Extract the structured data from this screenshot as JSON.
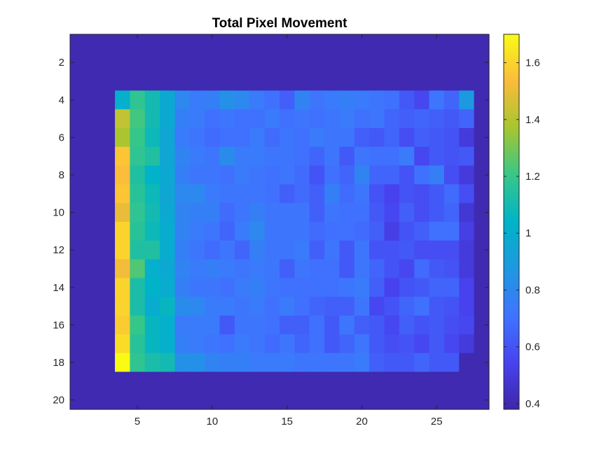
{
  "chart_data": {
    "type": "heatmap",
    "title": "Total Pixel Movement",
    "xlabel": "",
    "ylabel": "",
    "xlim": [
      0.5,
      28.5
    ],
    "ylim": [
      0.5,
      20.5
    ],
    "x_ticks": [
      5,
      10,
      15,
      20,
      25
    ],
    "y_ticks": [
      2,
      4,
      6,
      8,
      10,
      12,
      14,
      16,
      18,
      20
    ],
    "colorbar": {
      "colormap": "parula",
      "range": [
        0.38,
        1.7
      ],
      "ticks": [
        "0.4",
        "0.6",
        "0.8",
        "1",
        "1.2",
        "1.4",
        "1.6"
      ]
    },
    "background_value": 0.4,
    "matrix": [
      [
        0.4,
        0.4,
        0.4,
        0.4,
        0.4,
        0.4,
        0.4,
        0.4,
        0.4,
        0.4,
        0.4,
        0.4,
        0.4,
        0.4,
        0.4,
        0.4,
        0.4,
        0.4,
        0.4,
        0.4,
        0.4,
        0.4,
        0.4,
        0.4,
        0.4,
        0.4,
        0.4,
        0.4
      ],
      [
        0.4,
        0.4,
        0.4,
        0.4,
        0.4,
        0.4,
        0.4,
        0.4,
        0.4,
        0.4,
        0.4,
        0.4,
        0.4,
        0.4,
        0.4,
        0.4,
        0.4,
        0.4,
        0.4,
        0.4,
        0.4,
        0.4,
        0.4,
        0.4,
        0.4,
        0.4,
        0.4,
        0.4
      ],
      [
        0.4,
        0.4,
        0.4,
        0.4,
        0.4,
        0.4,
        0.4,
        0.4,
        0.4,
        0.4,
        0.4,
        0.4,
        0.4,
        0.4,
        0.4,
        0.4,
        0.4,
        0.4,
        0.4,
        0.4,
        0.4,
        0.4,
        0.4,
        0.4,
        0.4,
        0.4,
        0.4,
        0.4
      ],
      [
        0.4,
        0.4,
        0.4,
        1.02,
        1.18,
        1.1,
        0.98,
        0.8,
        0.74,
        0.76,
        0.84,
        0.8,
        0.74,
        0.7,
        0.64,
        0.78,
        0.72,
        0.74,
        0.76,
        0.74,
        0.72,
        0.7,
        0.62,
        0.56,
        0.72,
        0.66,
        0.88,
        0.4
      ],
      [
        0.4,
        0.4,
        0.4,
        1.42,
        1.22,
        1.1,
        0.98,
        0.76,
        0.74,
        0.7,
        0.72,
        0.7,
        0.7,
        0.74,
        0.7,
        0.72,
        0.7,
        0.72,
        0.74,
        0.7,
        0.72,
        0.66,
        0.64,
        0.66,
        0.64,
        0.62,
        0.66,
        0.4
      ],
      [
        0.4,
        0.4,
        0.4,
        1.38,
        1.2,
        1.08,
        0.96,
        0.74,
        0.72,
        0.68,
        0.7,
        0.7,
        0.74,
        0.68,
        0.72,
        0.7,
        0.74,
        0.72,
        0.72,
        0.64,
        0.62,
        0.66,
        0.58,
        0.64,
        0.62,
        0.6,
        0.5,
        0.4
      ],
      [
        0.4,
        0.4,
        0.4,
        1.56,
        1.18,
        1.14,
        0.96,
        0.78,
        0.74,
        0.72,
        0.82,
        0.74,
        0.74,
        0.72,
        0.72,
        0.7,
        0.66,
        0.72,
        0.62,
        0.72,
        0.7,
        0.7,
        0.74,
        0.56,
        0.62,
        0.6,
        0.62,
        0.4
      ],
      [
        0.4,
        0.4,
        0.4,
        1.54,
        1.14,
        1.04,
        0.98,
        0.76,
        0.72,
        0.72,
        0.7,
        0.74,
        0.72,
        0.7,
        0.72,
        0.68,
        0.6,
        0.7,
        0.66,
        0.78,
        0.66,
        0.66,
        0.6,
        0.7,
        0.76,
        0.58,
        0.5,
        0.4
      ],
      [
        0.4,
        0.4,
        0.4,
        1.56,
        1.16,
        1.08,
        0.96,
        0.8,
        0.8,
        0.74,
        0.72,
        0.72,
        0.72,
        0.7,
        0.64,
        0.68,
        0.64,
        0.76,
        0.68,
        0.72,
        0.6,
        0.54,
        0.6,
        0.58,
        0.62,
        0.68,
        0.58,
        0.4
      ],
      [
        0.4,
        0.4,
        0.4,
        1.5,
        1.18,
        1.1,
        0.98,
        0.78,
        0.76,
        0.76,
        0.68,
        0.72,
        0.76,
        0.72,
        0.72,
        0.72,
        0.64,
        0.72,
        0.7,
        0.7,
        0.62,
        0.56,
        0.64,
        0.58,
        0.62,
        0.66,
        0.48,
        0.4
      ],
      [
        0.4,
        0.4,
        0.4,
        1.6,
        1.16,
        1.08,
        1.0,
        0.78,
        0.74,
        0.72,
        0.66,
        0.74,
        0.8,
        0.72,
        0.72,
        0.72,
        0.68,
        0.7,
        0.7,
        0.68,
        0.64,
        0.52,
        0.6,
        0.64,
        0.7,
        0.7,
        0.52,
        0.4
      ],
      [
        0.4,
        0.4,
        0.4,
        1.6,
        1.14,
        1.14,
        1.0,
        0.76,
        0.72,
        0.68,
        0.72,
        0.66,
        0.76,
        0.72,
        0.72,
        0.74,
        0.64,
        0.72,
        0.62,
        0.72,
        0.6,
        0.6,
        0.62,
        0.58,
        0.58,
        0.58,
        0.5,
        0.4
      ],
      [
        0.4,
        0.4,
        0.4,
        1.52,
        1.24,
        1.02,
        0.98,
        0.78,
        0.74,
        0.76,
        0.74,
        0.72,
        0.74,
        0.72,
        0.64,
        0.72,
        0.7,
        0.7,
        0.62,
        0.72,
        0.66,
        0.6,
        0.56,
        0.68,
        0.62,
        0.6,
        0.5,
        0.4
      ],
      [
        0.4,
        0.4,
        0.4,
        1.6,
        1.12,
        1.04,
        1.0,
        0.76,
        0.72,
        0.72,
        0.7,
        0.74,
        0.76,
        0.72,
        0.7,
        0.7,
        0.7,
        0.7,
        0.72,
        0.74,
        0.64,
        0.54,
        0.6,
        0.62,
        0.66,
        0.66,
        0.54,
        0.4
      ],
      [
        0.4,
        0.4,
        0.4,
        1.6,
        1.12,
        1.0,
        1.06,
        0.82,
        0.8,
        0.74,
        0.74,
        0.72,
        0.74,
        0.7,
        0.74,
        0.7,
        0.66,
        0.64,
        0.64,
        0.72,
        0.56,
        0.6,
        0.66,
        0.7,
        0.62,
        0.6,
        0.54,
        0.4
      ],
      [
        0.4,
        0.4,
        0.4,
        1.58,
        1.2,
        1.06,
        1.02,
        0.74,
        0.74,
        0.74,
        0.62,
        0.72,
        0.72,
        0.7,
        0.64,
        0.64,
        0.7,
        0.62,
        0.72,
        0.64,
        0.62,
        0.56,
        0.64,
        0.6,
        0.62,
        0.58,
        0.56,
        0.4
      ],
      [
        0.4,
        0.4,
        0.4,
        1.62,
        1.16,
        1.06,
        1.02,
        0.76,
        0.74,
        0.72,
        0.7,
        0.74,
        0.72,
        0.68,
        0.72,
        0.66,
        0.7,
        0.62,
        0.66,
        0.72,
        0.62,
        0.58,
        0.6,
        0.56,
        0.62,
        0.56,
        0.5,
        0.4
      ],
      [
        0.4,
        0.4,
        0.4,
        1.7,
        1.18,
        1.12,
        1.1,
        0.84,
        0.84,
        0.78,
        0.76,
        0.76,
        0.74,
        0.74,
        0.74,
        0.72,
        0.72,
        0.72,
        0.72,
        0.74,
        0.64,
        0.62,
        0.62,
        0.66,
        0.62,
        0.62,
        0.4,
        0.4
      ],
      [
        0.4,
        0.4,
        0.4,
        0.4,
        0.4,
        0.4,
        0.4,
        0.4,
        0.4,
        0.4,
        0.4,
        0.4,
        0.4,
        0.4,
        0.4,
        0.4,
        0.4,
        0.4,
        0.4,
        0.4,
        0.4,
        0.4,
        0.4,
        0.4,
        0.4,
        0.4,
        0.4,
        0.4
      ],
      [
        0.4,
        0.4,
        0.4,
        0.4,
        0.4,
        0.4,
        0.4,
        0.4,
        0.4,
        0.4,
        0.4,
        0.4,
        0.4,
        0.4,
        0.4,
        0.4,
        0.4,
        0.4,
        0.4,
        0.4,
        0.4,
        0.4,
        0.4,
        0.4,
        0.4,
        0.4,
        0.4,
        0.4
      ]
    ]
  }
}
